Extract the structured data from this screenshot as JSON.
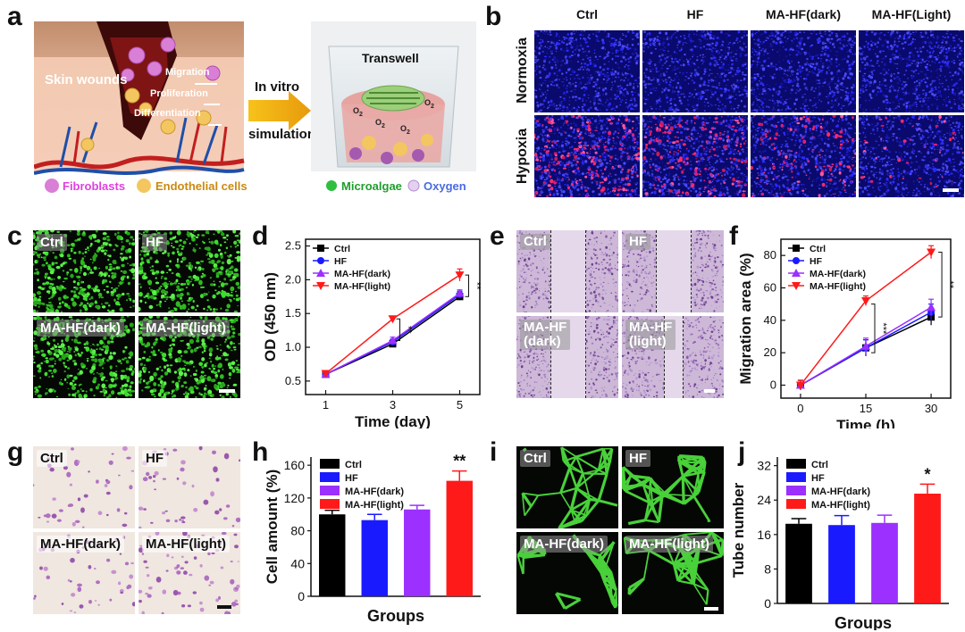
{
  "panels": [
    "a",
    "b",
    "c",
    "d",
    "e",
    "f",
    "g",
    "h",
    "i",
    "j"
  ],
  "panel_a": {
    "labels": {
      "skin_wounds": "Skin wounds",
      "migration": "Migration",
      "proliferation": "Proliferation",
      "differentiation": "Differentiation",
      "in_vitro": "In vitro",
      "simulation": "simulation",
      "transwell": "Transwell",
      "o2": "O",
      "o2_sub": "2",
      "legend_fibroblasts": "Fibroblasts",
      "legend_endothelial": "Endothelial cells",
      "legend_microalgae": "Microalgae",
      "legend_oxygen": "Oxygen"
    }
  },
  "panel_b": {
    "columns": [
      "Ctrl",
      "HF",
      "MA-HF(dark)",
      "MA-HF(Light)"
    ],
    "rows": [
      "Normoxia",
      "Hypoxia"
    ]
  },
  "panel_c": {
    "labels": [
      "Ctrl",
      "HF",
      "MA-HF(dark)",
      "MA-HF(light)"
    ]
  },
  "panel_e": {
    "labels": [
      "Ctrl",
      "HF",
      "MA-HF\n(dark)",
      "MA-HF\n(light)"
    ],
    "labels_line1": [
      "Ctrl",
      "HF",
      "MA-HF",
      "MA-HF"
    ],
    "labels_line2": [
      "",
      "",
      "(dark)",
      "(light)"
    ]
  },
  "panel_g": {
    "labels": [
      "Ctrl",
      "HF",
      "MA-HF(dark)",
      "MA-HF(light)"
    ]
  },
  "panel_i": {
    "labels": [
      "Ctrl",
      "HF",
      "MA-HF(dark)",
      "MA-HF(light)"
    ]
  },
  "colors": {
    "ctrl": "#000000",
    "hf": "#1a1aff",
    "dark": "#9b30ff",
    "light": "#ff1a1a"
  },
  "chart_data": [
    {
      "id": "d",
      "type": "line",
      "xlabel": "Time (day)",
      "ylabel": "OD (450 nm)",
      "x": [
        1,
        3,
        5
      ],
      "xticks": [
        "1",
        "3",
        "5"
      ],
      "ylim": [
        0.3,
        2.6
      ],
      "yticks": [
        "0.5",
        "1.0",
        "1.5",
        "2.0",
        "2.5"
      ],
      "ytick_values": [
        0.5,
        1.0,
        1.5,
        2.0,
        2.5
      ],
      "series": [
        {
          "name": "Ctrl",
          "values": [
            0.6,
            1.05,
            1.75
          ],
          "err": [
            0.02,
            0.04,
            0.05
          ],
          "marker": "square"
        },
        {
          "name": "HF",
          "values": [
            0.6,
            1.08,
            1.78
          ],
          "err": [
            0.02,
            0.04,
            0.05
          ],
          "marker": "circle"
        },
        {
          "name": "MA-HF(dark)",
          "values": [
            0.6,
            1.1,
            1.8
          ],
          "err": [
            0.02,
            0.05,
            0.05
          ],
          "marker": "triangle-up"
        },
        {
          "name": "MA-HF(light)",
          "values": [
            0.61,
            1.42,
            2.07
          ],
          "err": [
            0.02,
            0.04,
            0.09
          ],
          "marker": "triangle-down"
        }
      ],
      "significance": [
        "**",
        "**"
      ],
      "legend": "top-left"
    },
    {
      "id": "f",
      "type": "line",
      "xlabel": "Time (h)",
      "ylabel": "Migration area (%)",
      "x": [
        0,
        15,
        30
      ],
      "xticks": [
        "0",
        "15",
        "30"
      ],
      "ylim": [
        -8,
        90
      ],
      "yticks": [
        "0",
        "20",
        "40",
        "60",
        "80"
      ],
      "ytick_values": [
        0,
        20,
        40,
        60,
        80
      ],
      "series": [
        {
          "name": "Ctrl",
          "values": [
            0,
            23,
            42
          ],
          "err": [
            3,
            5,
            5
          ],
          "marker": "square"
        },
        {
          "name": "HF",
          "values": [
            0,
            23,
            45
          ],
          "err": [
            3,
            5,
            5
          ],
          "marker": "circle"
        },
        {
          "name": "MA-HF(dark)",
          "values": [
            0,
            24,
            48
          ],
          "err": [
            3,
            5,
            5
          ],
          "marker": "triangle-up"
        },
        {
          "name": "MA-HF(light)",
          "values": [
            0,
            52,
            82
          ],
          "err": [
            3,
            3,
            4
          ],
          "marker": "triangle-down"
        }
      ],
      "significance": [
        "***",
        "**"
      ],
      "legend": "top-left"
    },
    {
      "id": "h",
      "type": "bar",
      "xlabel": "Groups",
      "ylabel": "Cell amount (%)",
      "categories": [
        "Ctrl",
        "HF",
        "MA-HF(dark)",
        "MA-HF(light)"
      ],
      "values": [
        100,
        93,
        106,
        141
      ],
      "err": [
        5,
        7,
        5,
        12
      ],
      "ylim": [
        0,
        170
      ],
      "yticks": [
        "0",
        "40",
        "80",
        "120",
        "160"
      ],
      "ytick_values": [
        0,
        40,
        80,
        120,
        160
      ],
      "significance": "**",
      "legend": "top-left"
    },
    {
      "id": "j",
      "type": "bar",
      "xlabel": "Groups",
      "ylabel": "Tube number",
      "categories": [
        "Ctrl",
        "HF",
        "MA-HF(dark)",
        "MA-HF(light)"
      ],
      "values": [
        18.5,
        18.2,
        18.7,
        25.5
      ],
      "err": [
        1.2,
        2.2,
        1.8,
        2.2
      ],
      "ylim": [
        0,
        34
      ],
      "yticks": [
        "0",
        "8",
        "16",
        "24",
        "32"
      ],
      "ytick_values": [
        0,
        8,
        16,
        24,
        32
      ],
      "significance": "*",
      "legend": "top-left"
    }
  ]
}
